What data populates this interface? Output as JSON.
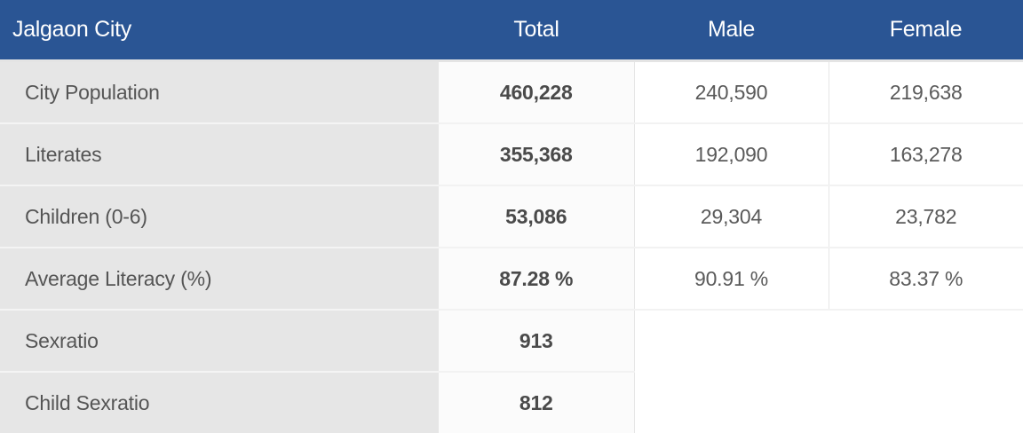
{
  "table": {
    "headers": {
      "label": "Jalgaon City",
      "total": "Total",
      "male": "Male",
      "female": "Female"
    },
    "rows": [
      {
        "label": "City Population",
        "total": "460,228",
        "male": "240,590",
        "female": "219,638"
      },
      {
        "label": "Literates",
        "total": "355,368",
        "male": "192,090",
        "female": "163,278"
      },
      {
        "label": "Children (0-6)",
        "total": "53,086",
        "male": "29,304",
        "female": "23,782"
      },
      {
        "label": "Average Literacy (%)",
        "total": "87.28 %",
        "male": "90.91 %",
        "female": "83.37 %"
      },
      {
        "label": "Sexratio",
        "total": "913"
      },
      {
        "label": "Child Sexratio",
        "total": "812"
      }
    ]
  },
  "colors": {
    "header_bg": "#2a5594",
    "header_text": "#ffffff",
    "label_bg": "#e6e6e6"
  }
}
